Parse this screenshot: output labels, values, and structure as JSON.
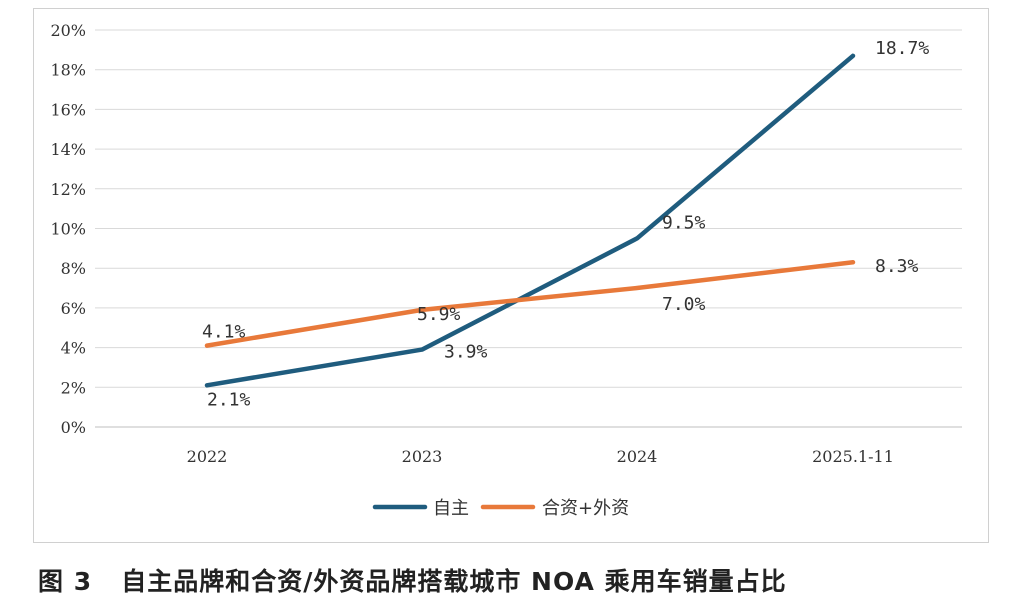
{
  "chart_data": {
    "type": "line",
    "categories": [
      "2022",
      "2023",
      "2024",
      "2025.1-11"
    ],
    "series": [
      {
        "name": "自主",
        "values": [
          2.1,
          3.9,
          9.5,
          18.7
        ],
        "labels": [
          "2.1%",
          "3.9%",
          "9.5%",
          "18.7%"
        ],
        "color": "#1f5c7e"
      },
      {
        "name": "合资+外资",
        "values": [
          4.1,
          5.9,
          7.0,
          8.3
        ],
        "labels": [
          "4.1%",
          "5.9%",
          "7.0%",
          "8.3%"
        ],
        "color": "#e8793a"
      }
    ],
    "yticks": [
      "0%",
      "2%",
      "4%",
      "6%",
      "8%",
      "10%",
      "12%",
      "14%",
      "16%",
      "18%",
      "20%"
    ],
    "ylim": [
      0,
      20
    ],
    "grid": true,
    "legend": "bottom"
  },
  "caption": "图 3   自主品牌和合资/外资品牌搭载城市 NOA 乘用车销量占比"
}
